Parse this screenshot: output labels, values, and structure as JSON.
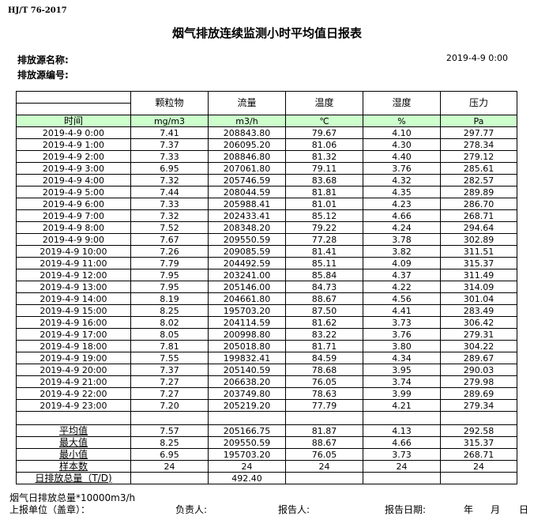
{
  "standard": "HJ/T  76-2017",
  "title": "烟气排放连续监测小时平均值日报表",
  "source_name_label": "排放源名称:",
  "source_id_label": "排放源编号:",
  "report_date": "2019-4-9 0:00",
  "columns": [
    "颗粒物",
    "流量",
    "温度",
    "湿度",
    "压力"
  ],
  "time_label": "时间",
  "units": [
    "mg/m3",
    "m3/h",
    "℃",
    "%",
    "Pa"
  ],
  "rows": [
    [
      "2019-4-9 0:00",
      "7.41",
      "208843.80",
      "79.67",
      "4.10",
      "297.77"
    ],
    [
      "2019-4-9 1:00",
      "7.37",
      "206095.20",
      "81.06",
      "4.30",
      "278.34"
    ],
    [
      "2019-4-9 2:00",
      "7.33",
      "208846.80",
      "81.32",
      "4.40",
      "279.12"
    ],
    [
      "2019-4-9 3:00",
      "6.95",
      "207061.80",
      "79.11",
      "3.76",
      "285.61"
    ],
    [
      "2019-4-9 4:00",
      "7.32",
      "205746.59",
      "83.68",
      "4.32",
      "282.57"
    ],
    [
      "2019-4-9 5:00",
      "7.44",
      "208044.59",
      "81.81",
      "4.35",
      "289.89"
    ],
    [
      "2019-4-9 6:00",
      "7.33",
      "205988.41",
      "81.01",
      "4.23",
      "286.70"
    ],
    [
      "2019-4-9 7:00",
      "7.32",
      "202433.41",
      "85.12",
      "4.66",
      "268.71"
    ],
    [
      "2019-4-9 8:00",
      "7.52",
      "208348.20",
      "79.22",
      "4.24",
      "294.64"
    ],
    [
      "2019-4-9 9:00",
      "7.67",
      "209550.59",
      "77.28",
      "3.78",
      "302.89"
    ],
    [
      "2019-4-9 10:00",
      "7.26",
      "209085.59",
      "81.41",
      "3.82",
      "311.51"
    ],
    [
      "2019-4-9 11:00",
      "7.79",
      "204492.59",
      "85.11",
      "4.09",
      "315.37"
    ],
    [
      "2019-4-9 12:00",
      "7.95",
      "203241.00",
      "85.84",
      "4.37",
      "311.49"
    ],
    [
      "2019-4-9 13:00",
      "7.95",
      "205146.00",
      "84.73",
      "4.22",
      "314.09"
    ],
    [
      "2019-4-9 14:00",
      "8.19",
      "204661.80",
      "88.67",
      "4.56",
      "301.04"
    ],
    [
      "2019-4-9 15:00",
      "8.25",
      "195703.20",
      "87.50",
      "4.41",
      "283.49"
    ],
    [
      "2019-4-9 16:00",
      "8.02",
      "204114.59",
      "81.62",
      "3.73",
      "306.42"
    ],
    [
      "2019-4-9 17:00",
      "8.05",
      "200998.80",
      "83.22",
      "3.76",
      "279.31"
    ],
    [
      "2019-4-9 18:00",
      "7.81",
      "205018.80",
      "81.71",
      "3.80",
      "304.22"
    ],
    [
      "2019-4-9 19:00",
      "7.55",
      "199832.41",
      "84.59",
      "4.34",
      "289.67"
    ],
    [
      "2019-4-9 20:00",
      "7.37",
      "205140.59",
      "78.68",
      "3.95",
      "290.03"
    ],
    [
      "2019-4-9 21:00",
      "7.27",
      "206638.20",
      "76.05",
      "3.74",
      "279.98"
    ],
    [
      "2019-4-9 22:00",
      "7.27",
      "203749.80",
      "78.63",
      "3.99",
      "289.69"
    ],
    [
      "2019-4-9 23:00",
      "7.20",
      "205219.20",
      "77.79",
      "4.21",
      "279.34"
    ]
  ],
  "summary": [
    [
      "平均值",
      "7.57",
      "205166.75",
      "81.87",
      "4.13",
      "292.58"
    ],
    [
      "最大值",
      "8.25",
      "209550.59",
      "88.67",
      "4.66",
      "315.37"
    ],
    [
      "最小值",
      "6.95",
      "195703.20",
      "76.05",
      "3.73",
      "268.71"
    ],
    [
      "样本数",
      "24",
      "24",
      "24",
      "24",
      "24"
    ],
    [
      "日排放总量（T/D)",
      "",
      "492.40",
      "",
      "",
      ""
    ]
  ],
  "footer": {
    "note": "烟气日排放总量*10000m3/h",
    "unit_label": "上报单位（盖章）：",
    "responsible_label": "负责人:",
    "reporter_label": "报告人:",
    "report_date_label": "报告日期:",
    "year": "年",
    "month": "月",
    "day": "日"
  },
  "colors": {
    "unit_row_bg": "#ccffcc"
  }
}
